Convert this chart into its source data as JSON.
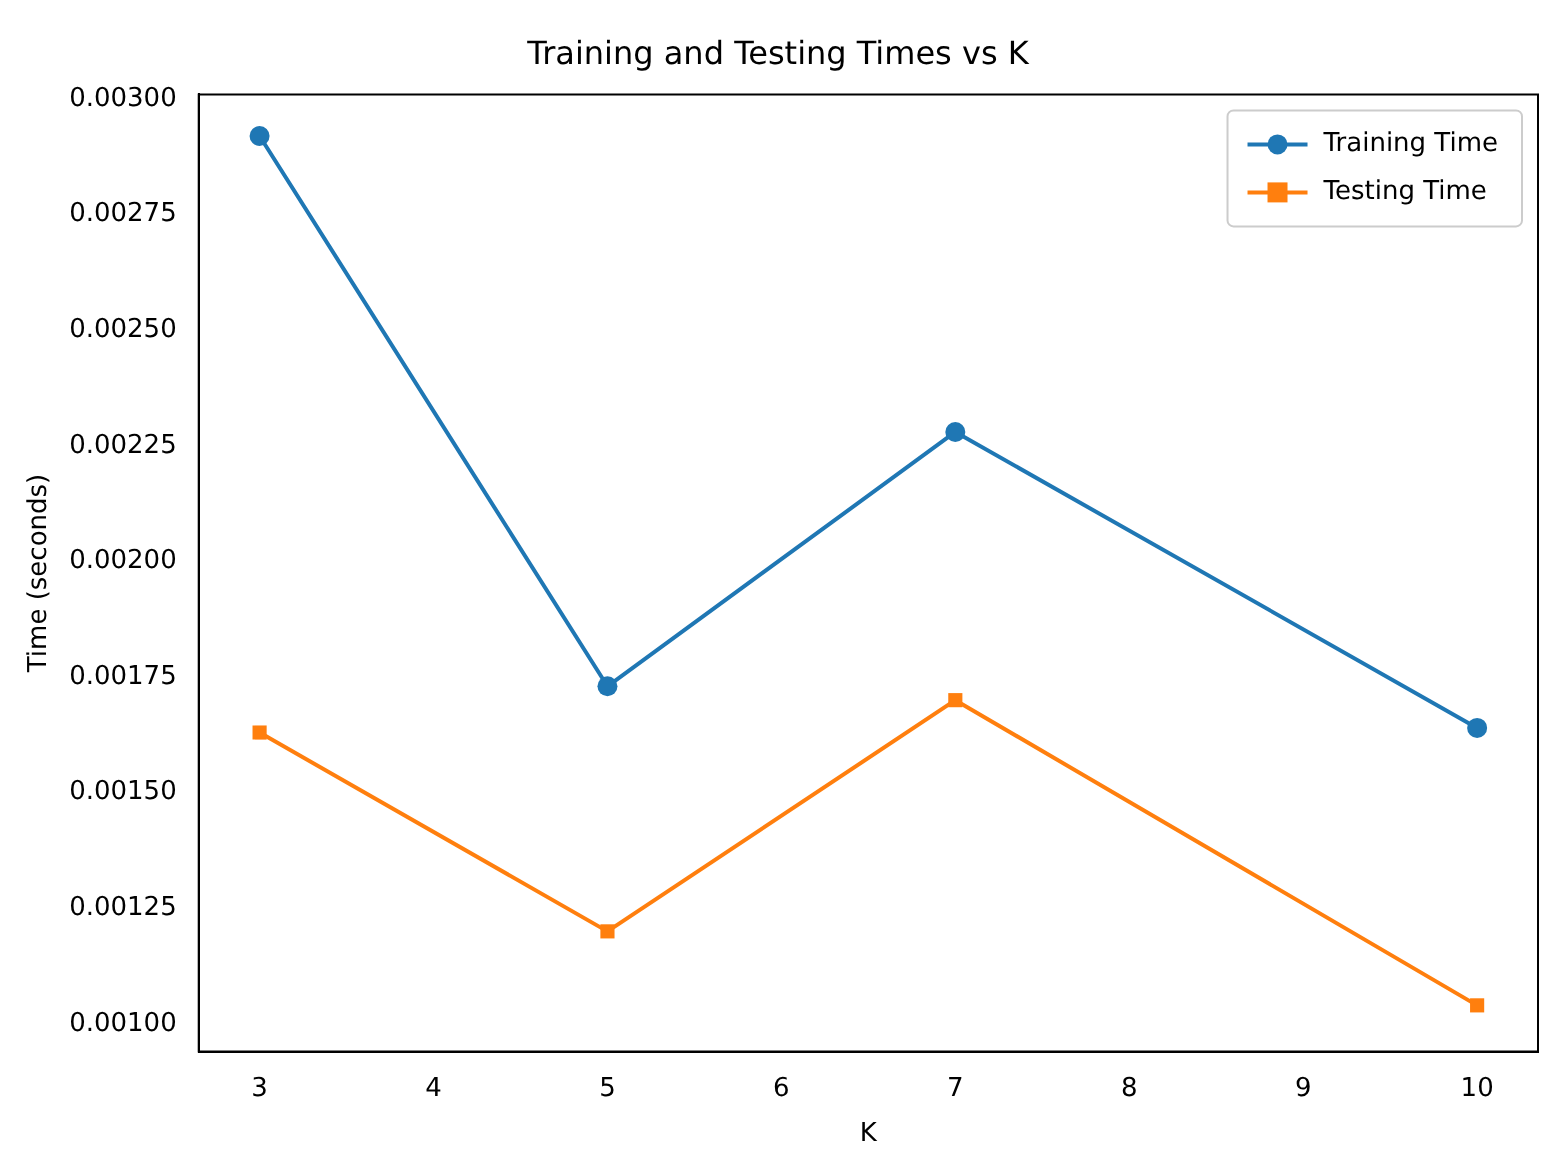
{
  "chart_data": {
    "type": "line",
    "title": "Training and Testing Times vs K",
    "xlabel": "K",
    "ylabel": "Time (seconds)",
    "x": [
      3,
      5,
      7,
      10
    ],
    "series": [
      {
        "name": "Training Time",
        "color": "#1f77b4",
        "marker": "circle",
        "values": [
          0.00292,
          0.00173,
          0.00228,
          0.00164
        ]
      },
      {
        "name": "Testing Time",
        "color": "#ff7f0e",
        "marker": "square",
        "values": [
          0.00163,
          0.0012,
          0.0017,
          0.00104
        ]
      }
    ],
    "xlim": [
      2.65,
      10.35
    ],
    "xticks": [
      3,
      4,
      5,
      6,
      7,
      8,
      9,
      10
    ],
    "ylim": [
      0.00094,
      0.00301
    ],
    "yticks": [
      {
        "value": 0.001,
        "label": "0.00100"
      },
      {
        "value": 0.00125,
        "label": "0.00125"
      },
      {
        "value": 0.0015,
        "label": "0.00150"
      },
      {
        "value": 0.00175,
        "label": "0.00175"
      },
      {
        "value": 0.002,
        "label": "0.00200"
      },
      {
        "value": 0.00225,
        "label": "0.00225"
      },
      {
        "value": 0.0025,
        "label": "0.00250"
      },
      {
        "value": 0.00275,
        "label": "0.00275"
      },
      {
        "value": 0.003,
        "label": "0.00300"
      }
    ],
    "grid": false,
    "legend": "top right"
  }
}
